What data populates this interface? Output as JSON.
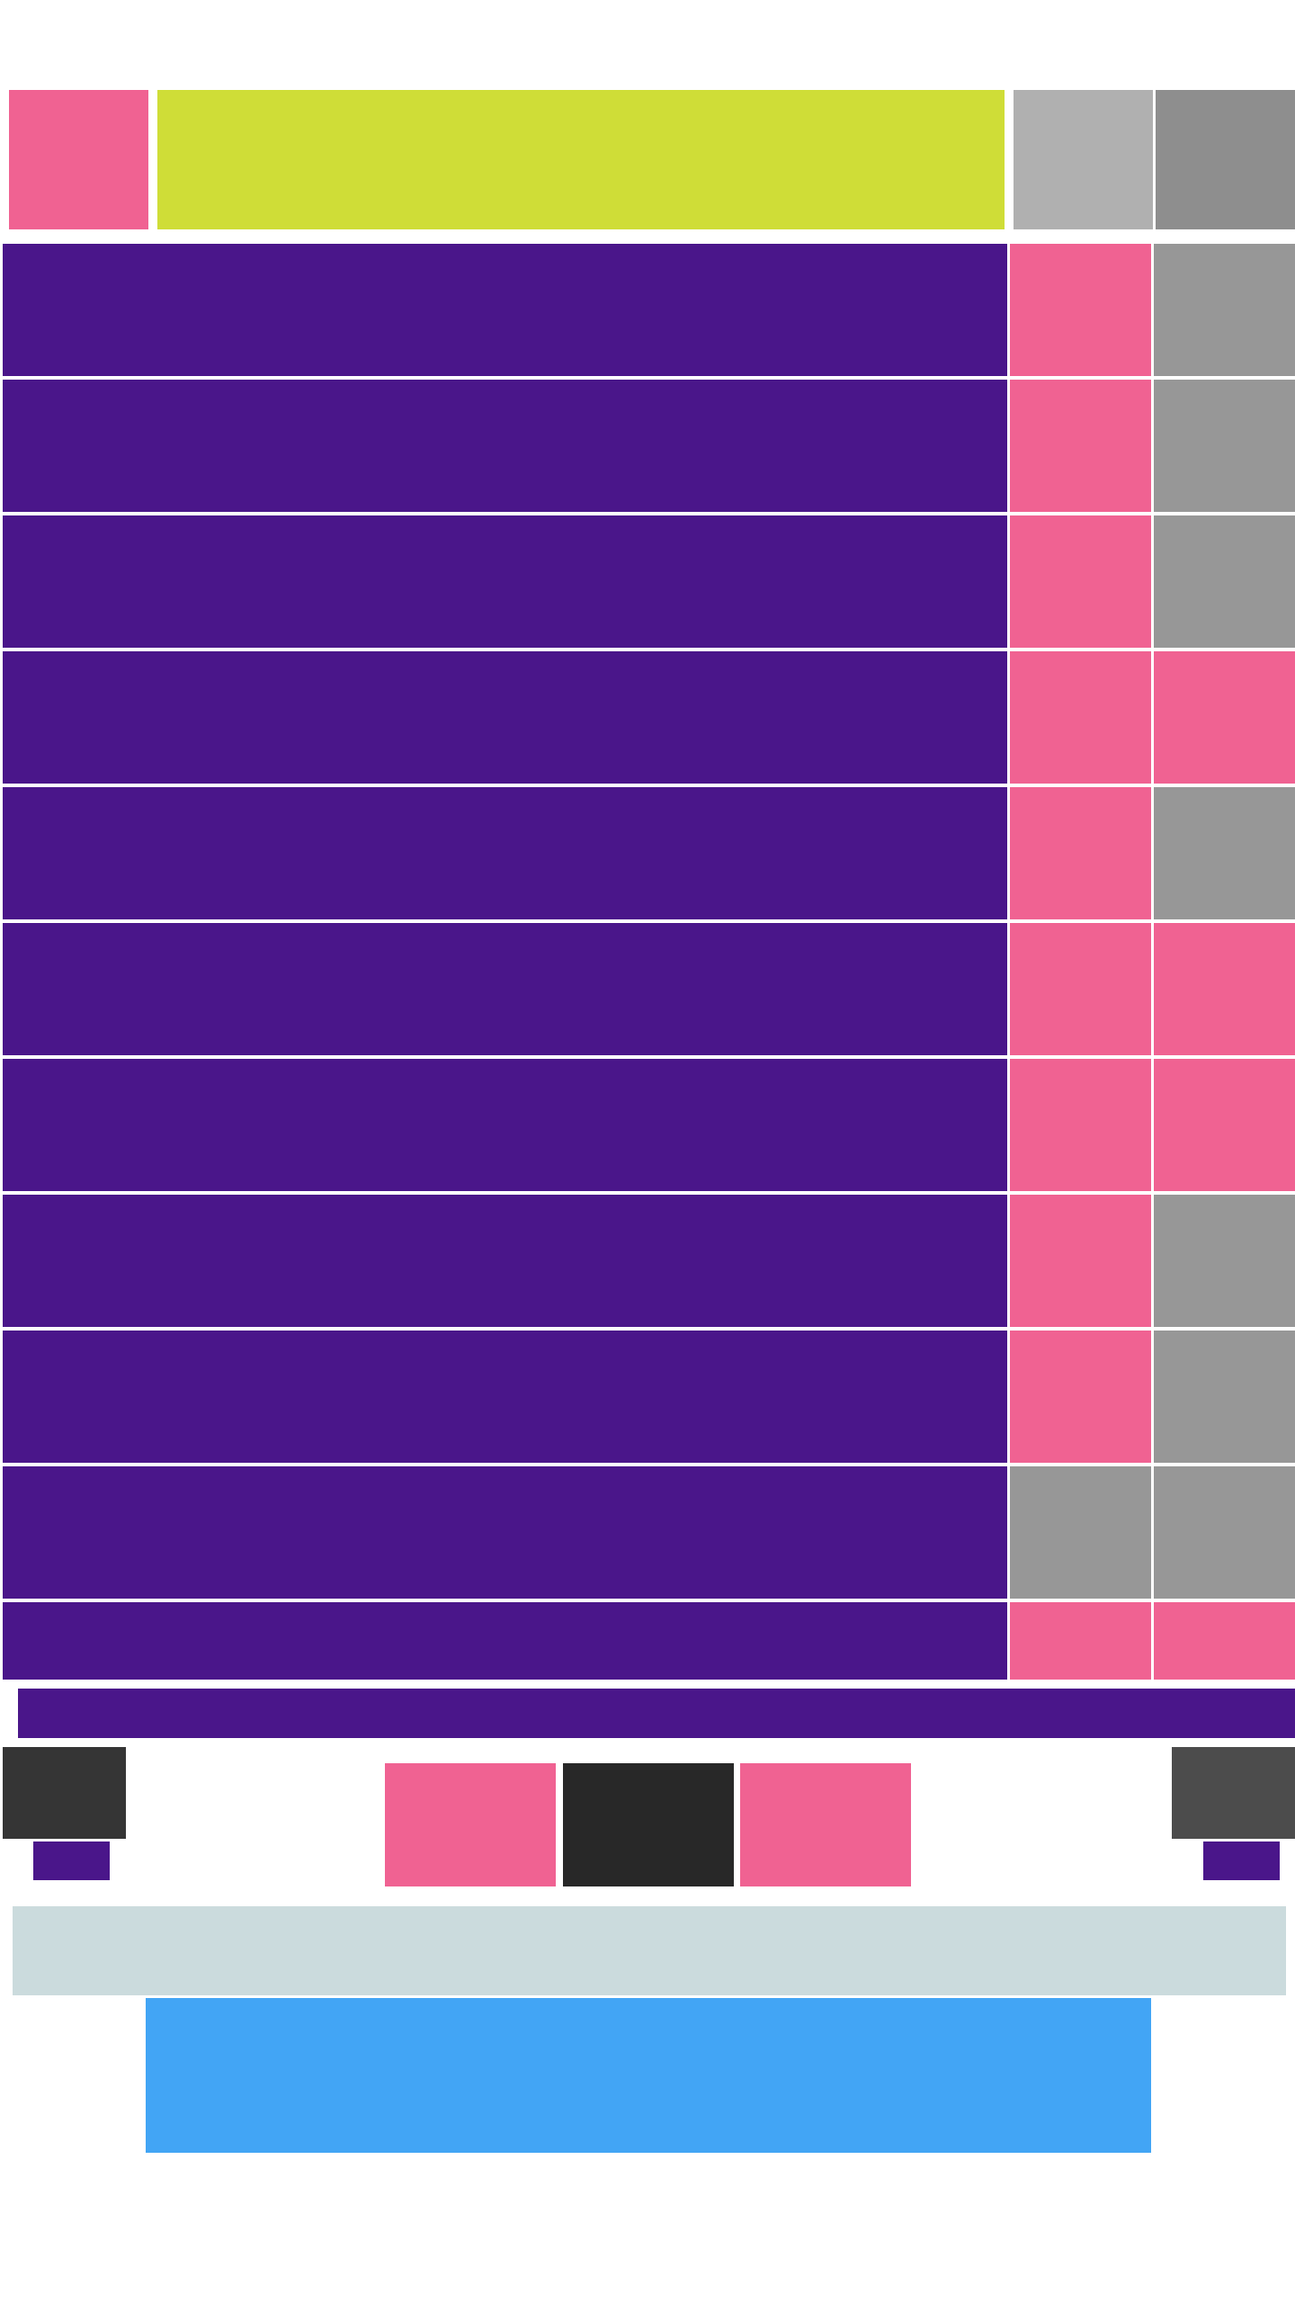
{
  "header": {
    "brand_color": "#f06292",
    "title": "",
    "title_bg": "#cfdd37",
    "action_light_bg": "#b0b0b0",
    "action_dark_bg": "#8e8e8e"
  },
  "list": {
    "row_color": "#4a168a",
    "pink": "#f06292",
    "gray": "#979797",
    "rows": [
      {
        "label": "",
        "a": "pink",
        "b": "gray"
      },
      {
        "label": "",
        "a": "pink",
        "b": "gray"
      },
      {
        "label": "",
        "a": "pink",
        "b": "gray"
      },
      {
        "label": "",
        "a": "pink",
        "b": "pink"
      },
      {
        "label": "",
        "a": "pink",
        "b": "gray"
      },
      {
        "label": "",
        "a": "pink",
        "b": "pink"
      },
      {
        "label": "",
        "a": "pink",
        "b": "pink"
      },
      {
        "label": "",
        "a": "pink",
        "b": "gray"
      },
      {
        "label": "",
        "a": "pink",
        "b": "gray"
      },
      {
        "label": "",
        "a": "gray",
        "b": "gray"
      },
      {
        "label": "",
        "a": "pink",
        "b": "pink"
      }
    ]
  },
  "progress": {
    "fill_color": "#4a168a"
  },
  "player": {
    "left_button_bg": "#353535",
    "left_indicator_bg": "#4a168a",
    "prev_bg": "#f06292",
    "play_bg": "#282828",
    "next_bg": "#f06292",
    "right_button_bg": "#4c4c4c",
    "right_indicator_bg": "#4a168a"
  },
  "footer": {
    "bar_bg": "#cbdbdd",
    "cta_bg": "#42a5f5",
    "cta_label": ""
  }
}
